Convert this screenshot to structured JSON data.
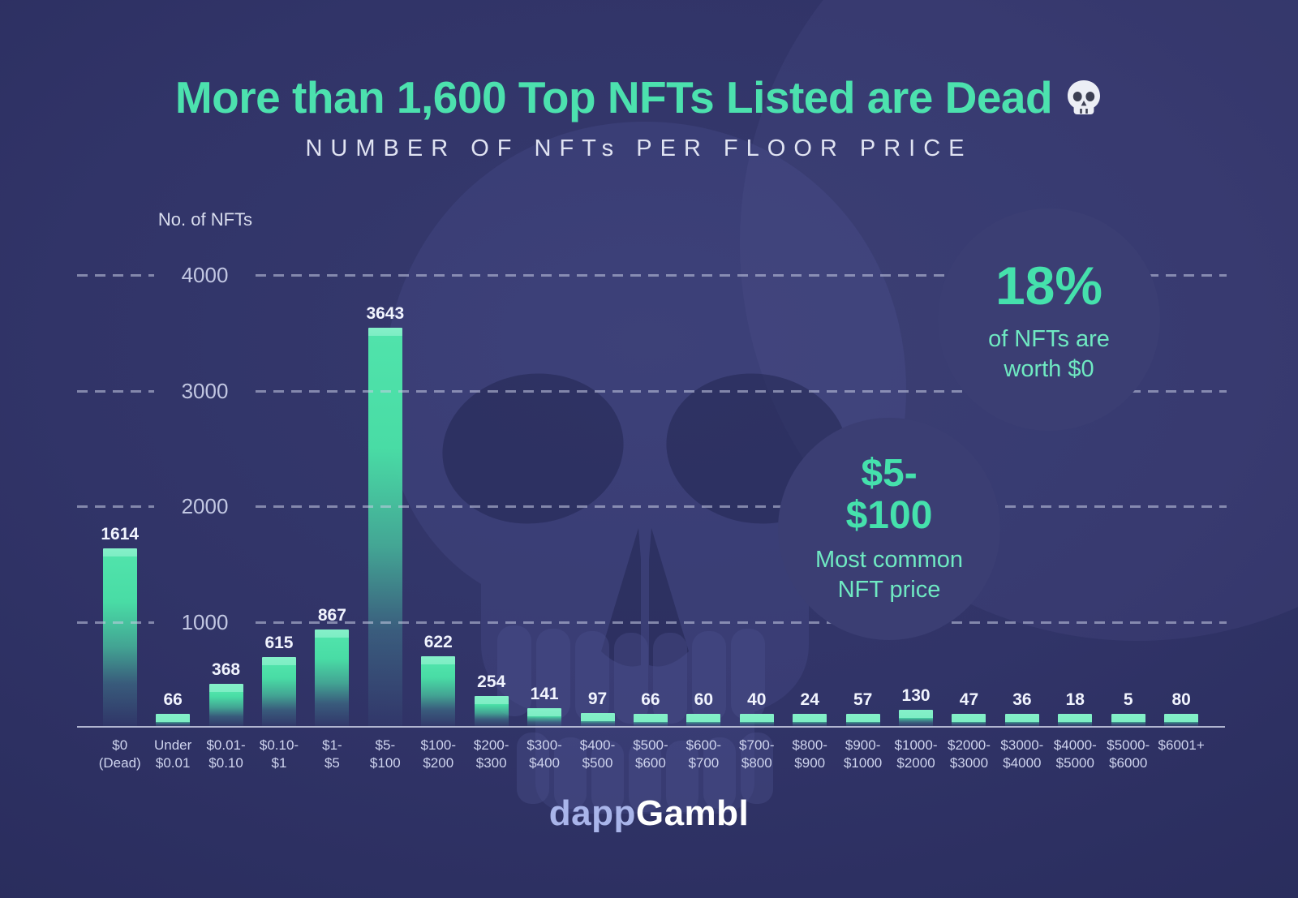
{
  "title": {
    "text": "More than 1,600 Top NFTs Listed are Dead",
    "icon": "skull"
  },
  "subtitle": "NUMBER OF NFTs PER FLOOR PRICE",
  "chart_data": {
    "type": "bar",
    "title": "More than 1,600 Top NFTs Listed are Dead",
    "subtitle": "NUMBER OF NFTs PER FLOOR PRICE",
    "ylabel": "No. of NFTs",
    "xlabel": "",
    "ylim": [
      0,
      4000
    ],
    "yticks": [
      4000,
      3000,
      2000,
      1000
    ],
    "grid": "dashed horizontal",
    "legend": "none",
    "categories": [
      "$0\n(Dead)",
      "Under\n$0.01",
      "$0.01-\n$0.10",
      "$0.10-\n$1",
      "$1-\n$5",
      "$5-\n$100",
      "$100-\n$200",
      "$200-\n$300",
      "$300-\n$400",
      "$400-\n$500",
      "$500-\n$600",
      "$600-\n$700",
      "$700-\n$800",
      "$800-\n$900",
      "$900-\n$1000",
      "$1000-\n$2000",
      "$2000-\n$3000",
      "$3000-\n$4000",
      "$4000-\n$5000",
      "$5000-\n$6000",
      "$6001+"
    ],
    "values": [
      1614,
      66,
      368,
      615,
      867,
      3643,
      622,
      254,
      141,
      97,
      66,
      60,
      40,
      24,
      57,
      130,
      47,
      36,
      18,
      5,
      80
    ]
  },
  "callouts": [
    {
      "headline": "18%",
      "body": "of NFTs are\nworth $0"
    },
    {
      "headline": "$5-\n$100",
      "body": "Most common\nNFT price"
    }
  ],
  "logo": {
    "part1": "dapp",
    "part2": "Gambl"
  },
  "colors": {
    "background": "#2d3063",
    "accent_mint": "#4ce1ae",
    "bar_top": "#85f0c9",
    "bar_body": "#49dca5",
    "callout_circle": "#3b3e73",
    "grid": "#c7cce4",
    "text_light": "#e0e3f2",
    "logo_blue": "#a9b5ea"
  }
}
